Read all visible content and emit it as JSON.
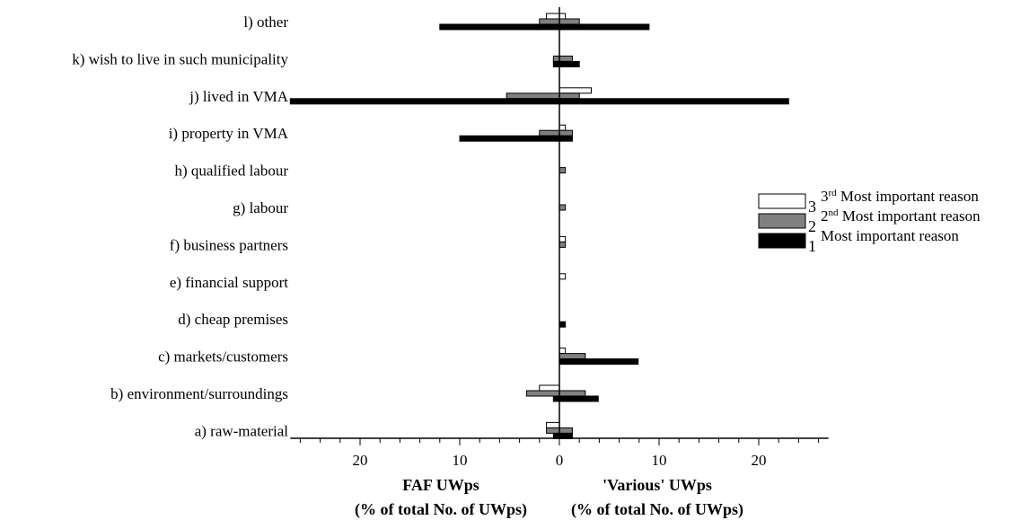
{
  "chart_data": {
    "type": "bar",
    "orientation": "horizontal-diverging",
    "categories": [
      "l) other",
      "k) wish to live in such municipality",
      "j) lived in VMA",
      "i) property in VMA",
      "h) qualified labour",
      "g) labour",
      "f) business partners",
      "e) financial support",
      "d) cheap premises",
      "c) markets/customers",
      "b) environment/surroundings",
      "a) raw-material"
    ],
    "series": [
      {
        "name": "3rd Most important reason",
        "legend_number": "3",
        "ordinal_sup": "rd",
        "legend_text": "Most important reason",
        "color": "#ffffff",
        "left": [
          1.3,
          0,
          0,
          0,
          0,
          0,
          0,
          0,
          0,
          0,
          2.0,
          1.3
        ],
        "right": [
          0.6,
          0,
          3.2,
          0.6,
          0,
          0,
          0.6,
          0.6,
          0,
          0.6,
          0,
          0
        ]
      },
      {
        "name": "2nd Most important reason",
        "legend_number": "2",
        "ordinal_sup": "nd",
        "legend_text": "Most important reason",
        "color": "#808080",
        "left": [
          2.0,
          0.6,
          5.3,
          2.0,
          0,
          0,
          0,
          0,
          0,
          0,
          3.3,
          1.3
        ],
        "right": [
          2.0,
          1.3,
          2.0,
          1.3,
          0.6,
          0.6,
          0.6,
          0,
          0,
          2.6,
          2.6,
          1.3
        ]
      },
      {
        "name": "Most important reason",
        "legend_number": "1",
        "ordinal_sup": "",
        "legend_text": "Most important reason",
        "color": "#000000",
        "left": [
          12.0,
          0.6,
          27.0,
          10.0,
          0,
          0,
          0,
          0,
          0,
          0,
          0.6,
          0.6
        ],
        "right": [
          9.0,
          2.0,
          23.0,
          1.3,
          0,
          0,
          0,
          0,
          0.6,
          7.9,
          3.9,
          1.3
        ]
      }
    ],
    "x_ticks": [
      "20",
      "10",
      "0",
      "10",
      "20"
    ],
    "x_tick_values": [
      -20,
      -10,
      0,
      10,
      20
    ],
    "xlim": [
      -27,
      27
    ],
    "left_title": [
      "FAF UWps",
      "(% of total No. of UWps)"
    ],
    "right_title": [
      "'Various' UWps",
      "(% of total No. of UWps)"
    ],
    "legend_position": "right",
    "grid": false
  }
}
